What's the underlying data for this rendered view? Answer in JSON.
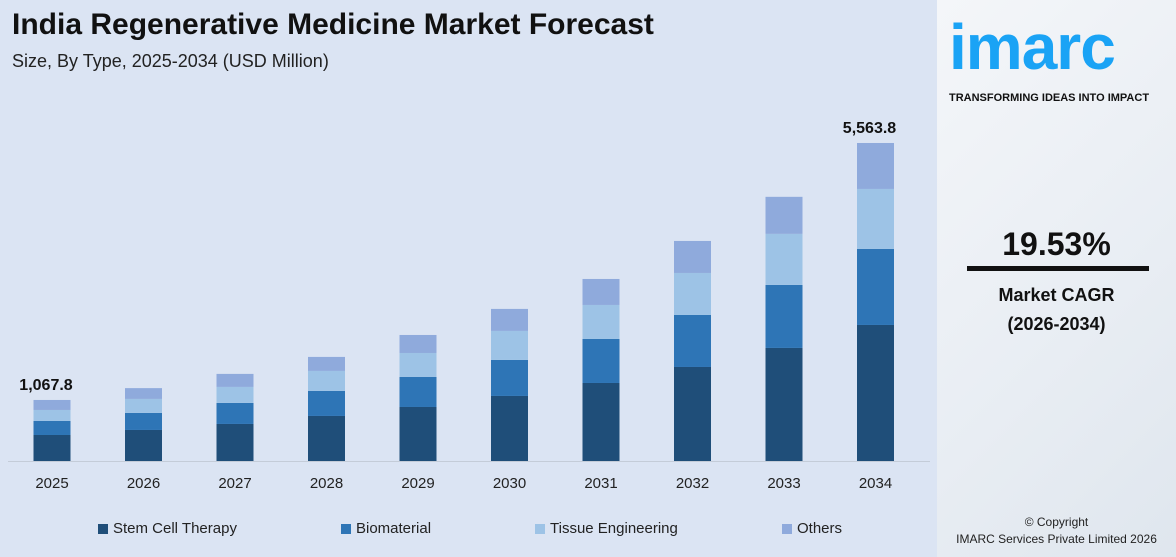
{
  "header": {
    "title": "India Regenerative Medicine Market Forecast",
    "subtitle": "Size, By Type, 2025-2034 (USD Million)"
  },
  "chart_data": {
    "type": "bar",
    "stacked": true,
    "categories": [
      "2025",
      "2026",
      "2027",
      "2028",
      "2029",
      "2030",
      "2031",
      "2032",
      "2033",
      "2034"
    ],
    "series": [
      {
        "name": "Stem Cell Therapy",
        "color": "#1f4e79",
        "values": [
          455,
          543,
          648,
          788,
          945,
          1138,
          1365,
          1645,
          1978,
          2380
        ]
      },
      {
        "name": "Biomaterial",
        "color": "#2e75b6",
        "values": [
          245,
          298,
          368,
          438,
          525,
          630,
          770,
          910,
          1103,
          1330
        ]
      },
      {
        "name": "Tissue Engineering",
        "color": "#9dc3e6",
        "values": [
          193,
          245,
          280,
          350,
          420,
          508,
          595,
          735,
          893,
          1050
        ]
      },
      {
        "name": "Others",
        "color": "#8faadc",
        "values": [
          175,
          189,
          228,
          245,
          315,
          385,
          455,
          560,
          648,
          804
        ]
      }
    ],
    "annotations": [
      {
        "category": "2025",
        "label": "1,067.8"
      },
      {
        "category": "2034",
        "label": "5,563.8"
      }
    ],
    "grid": false,
    "legend": "bottom",
    "ylim": [
      0,
      5600
    ]
  },
  "side": {
    "logo": "imarc",
    "tagline": "TRANSFORMING IDEAS INTO IMPACT",
    "cagr": "19.53%",
    "cagr_label": "Market CAGR",
    "cagr_period": "(2026-2034)",
    "copyright": "© Copyright",
    "company": "IMARC Services Private Limited 2026"
  }
}
